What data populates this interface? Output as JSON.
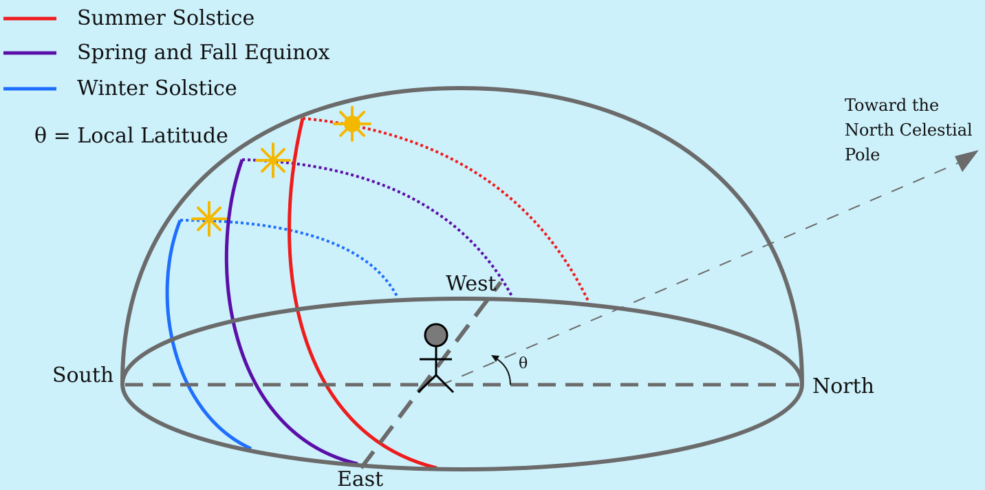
{
  "legend": {
    "items": [
      {
        "label": "Summer Solstice",
        "color": "#ee1c1c"
      },
      {
        "label": "Spring and Fall Equinox",
        "color": "#5a0fa8"
      },
      {
        "label": "Winter Solstice",
        "color": "#1f6fff"
      }
    ],
    "latitude_note": "θ = Local Latitude"
  },
  "directions": {
    "south": "South",
    "north": "North",
    "east": "East",
    "west": "West"
  },
  "pole_label": [
    "Toward the",
    "North Celestial",
    "Pole"
  ],
  "angle_symbol": "θ",
  "colors": {
    "background": "#cdf1fb",
    "dome": "#6b6b6b",
    "sun": "#f5b800",
    "summer": "#ee1c1c",
    "equinox": "#5a0fa8",
    "winter": "#1f6fff"
  },
  "icons": {
    "sun": "sun-icon",
    "observer": "observer-figure-icon",
    "pole_arrow": "arrowhead-icon"
  }
}
